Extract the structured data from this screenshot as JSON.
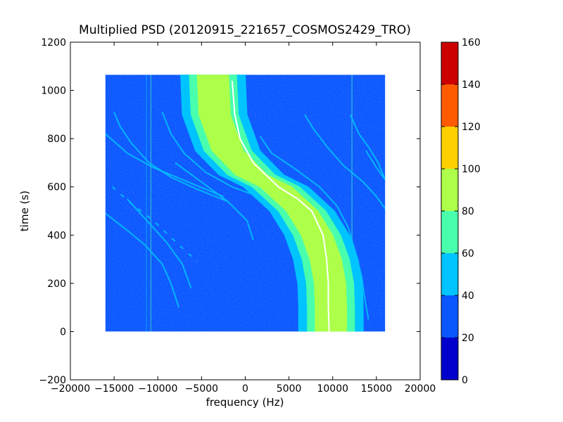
{
  "chart_data": {
    "type": "heatmap",
    "title": "Multiplied PSD (20120915_221657_COSMOS2429_TRO)",
    "xlabel": "frequency (Hz)",
    "ylabel": "time (s)",
    "xlim": [
      -20000,
      20000
    ],
    "ylim": [
      -200,
      1200
    ],
    "xticks": [
      -20000,
      -15000,
      -10000,
      -5000,
      0,
      5000,
      10000,
      15000,
      20000
    ],
    "xtick_labels": [
      "−20000",
      "−15000",
      "−10000",
      "−5000",
      "0",
      "5000",
      "10000",
      "15000",
      "20000"
    ],
    "yticks": [
      -200,
      0,
      200,
      400,
      600,
      800,
      1000,
      1200
    ],
    "ytick_labels": [
      "−200",
      "0",
      "200",
      "400",
      "600",
      "800",
      "1000",
      "1200"
    ],
    "data_extent": {
      "x": [
        -16000,
        16000
      ],
      "y": [
        0,
        1065
      ]
    },
    "colorbar": {
      "range": [
        0,
        160
      ],
      "ticks": [
        0,
        20,
        40,
        60,
        80,
        100,
        120,
        140,
        160
      ],
      "tick_labels": [
        "0",
        "20",
        "40",
        "60",
        "80",
        "100",
        "120",
        "140",
        "160"
      ],
      "levels": [
        {
          "range": [
            0,
            20
          ],
          "color": "#0000cc"
        },
        {
          "range": [
            20,
            40
          ],
          "color": "#0a56ff"
        },
        {
          "range": [
            40,
            60
          ],
          "color": "#00c4ff"
        },
        {
          "range": [
            60,
            80
          ],
          "color": "#49ffad"
        },
        {
          "range": [
            80,
            100
          ],
          "color": "#adff49"
        },
        {
          "range": [
            100,
            120
          ],
          "color": "#ffd000"
        },
        {
          "range": [
            120,
            140
          ],
          "color": "#ff5a00"
        },
        {
          "range": [
            140,
            160
          ],
          "color": "#cc0000"
        }
      ]
    },
    "background_level_color": "#0a56ff",
    "main_band": {
      "center_curve": [
        {
          "t": 1065,
          "f": -3700
        },
        {
          "t": 900,
          "f": -3500
        },
        {
          "t": 750,
          "f": -2000
        },
        {
          "t": 650,
          "f": 700
        },
        {
          "t": 600,
          "f": 3500
        },
        {
          "t": 500,
          "f": 6500
        },
        {
          "t": 400,
          "f": 8200
        },
        {
          "t": 300,
          "f": 9200
        },
        {
          "t": 200,
          "f": 9700
        },
        {
          "t": 100,
          "f": 9800
        },
        {
          "t": 0,
          "f": 9800
        }
      ],
      "outer_halfwidth_hz": 3700,
      "middle_halfwidth_hz": 2700,
      "inner_halfwidth_hz": 1800,
      "levels_outer_to_inner": [
        "#00c4ff",
        "#49ffad",
        "#adff49"
      ]
    },
    "tracked_line": {
      "color": "#ffffff",
      "points": [
        {
          "t": 1040,
          "f": -1500
        },
        {
          "t": 900,
          "f": -1200
        },
        {
          "t": 800,
          "f": -600
        },
        {
          "t": 700,
          "f": 900
        },
        {
          "t": 600,
          "f": 3800
        },
        {
          "t": 550,
          "f": 6000
        },
        {
          "t": 500,
          "f": 7600
        },
        {
          "t": 400,
          "f": 8900
        },
        {
          "t": 300,
          "f": 9300
        },
        {
          "t": 200,
          "f": 9500
        },
        {
          "t": 100,
          "f": 9500
        },
        {
          "t": 0,
          "f": 9600
        }
      ]
    },
    "faint_traces": [
      {
        "color": "#00c4ff",
        "points": [
          {
            "t": 910,
            "f": -15000
          },
          {
            "t": 850,
            "f": -14300
          },
          {
            "t": 780,
            "f": -13000
          },
          {
            "t": 700,
            "f": -11000
          },
          {
            "t": 640,
            "f": -8500
          },
          {
            "t": 590,
            "f": -5500
          },
          {
            "t": 540,
            "f": -2000
          }
        ]
      },
      {
        "color": "#00c4ff",
        "points": [
          {
            "t": 910,
            "f": -9500
          },
          {
            "t": 820,
            "f": -8500
          },
          {
            "t": 740,
            "f": -7000
          },
          {
            "t": 660,
            "f": -4500
          },
          {
            "t": 600,
            "f": -1500
          },
          {
            "t": 560,
            "f": 1500
          }
        ]
      },
      {
        "color": "#00c4ff",
        "points": [
          {
            "t": 820,
            "f": -16000
          },
          {
            "t": 740,
            "f": -13500
          },
          {
            "t": 680,
            "f": -10500
          },
          {
            "t": 620,
            "f": -6500
          },
          {
            "t": 560,
            "f": -2500
          }
        ]
      },
      {
        "color": "#00c4ff",
        "points": [
          {
            "t": 490,
            "f": -16000
          },
          {
            "t": 420,
            "f": -13500
          },
          {
            "t": 360,
            "f": -11500
          },
          {
            "t": 280,
            "f": -9500
          },
          {
            "t": 200,
            "f": -8500
          },
          {
            "t": 100,
            "f": -7600
          }
        ]
      },
      {
        "color": "#00c4ff",
        "points": [
          {
            "t": 550,
            "f": -13500
          },
          {
            "t": 470,
            "f": -11500
          },
          {
            "t": 370,
            "f": -9000
          },
          {
            "t": 280,
            "f": -7200
          },
          {
            "t": 180,
            "f": -6200
          }
        ]
      },
      {
        "color": "#00c4ff",
        "points": [
          {
            "t": 700,
            "f": -8000
          },
          {
            "t": 620,
            "f": -5000
          },
          {
            "t": 540,
            "f": -2000
          },
          {
            "t": 460,
            "f": 200
          },
          {
            "t": 380,
            "f": 900
          }
        ]
      },
      {
        "color": "#00c4ff",
        "points": [
          {
            "t": 810,
            "f": 1700
          },
          {
            "t": 740,
            "f": 3000
          },
          {
            "t": 680,
            "f": 5500
          },
          {
            "t": 600,
            "f": 8500
          },
          {
            "t": 520,
            "f": 10500
          },
          {
            "t": 430,
            "f": 11800
          },
          {
            "t": 330,
            "f": 12600
          },
          {
            "t": 230,
            "f": 13300
          },
          {
            "t": 130,
            "f": 13700
          },
          {
            "t": 50,
            "f": 14100
          }
        ]
      },
      {
        "color": "#00c4ff",
        "points": [
          {
            "t": 900,
            "f": 6800
          },
          {
            "t": 840,
            "f": 7800
          },
          {
            "t": 760,
            "f": 9500
          },
          {
            "t": 690,
            "f": 11200
          },
          {
            "t": 620,
            "f": 13500
          },
          {
            "t": 560,
            "f": 15000
          },
          {
            "t": 510,
            "f": 16000
          }
        ]
      },
      {
        "color": "#00c4ff",
        "points": [
          {
            "t": 900,
            "f": 12000
          },
          {
            "t": 820,
            "f": 13000
          },
          {
            "t": 760,
            "f": 14200
          },
          {
            "t": 700,
            "f": 15200
          },
          {
            "t": 630,
            "f": 16000
          }
        ]
      },
      {
        "color": "#00c4ff",
        "points": [
          {
            "t": 750,
            "f": 13800
          },
          {
            "t": 680,
            "f": 15000
          },
          {
            "t": 630,
            "f": 16000
          }
        ]
      }
    ],
    "dashed_traces": [
      {
        "color": "#00c4ff",
        "points": [
          {
            "t": 600,
            "f": -15200
          },
          {
            "t": 530,
            "f": -13000
          },
          {
            "t": 460,
            "f": -10500
          },
          {
            "t": 380,
            "f": -8200
          },
          {
            "t": 290,
            "f": -5500
          }
        ]
      }
    ],
    "vertical_lines": [
      {
        "f": -10800,
        "color": "#49ffad"
      },
      {
        "f": -11300,
        "color": "#00c4ff"
      },
      {
        "f": 12200,
        "color": "#49ffad"
      }
    ]
  }
}
